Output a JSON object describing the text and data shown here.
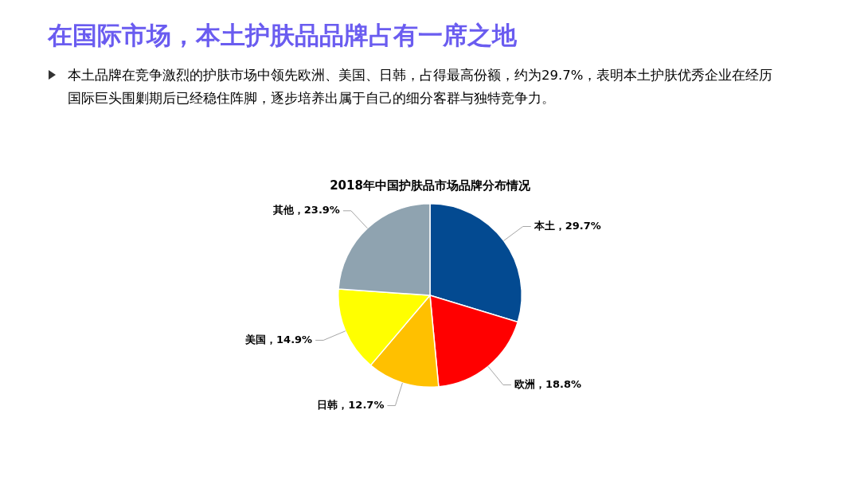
{
  "chart_data": {
    "type": "pie",
    "title": "2018年中国护肤品市场品牌分布情况",
    "annotations": [
      "在国际市场，本土护肤品品牌占有一席之地",
      "本土品牌在竞争激烈的护肤市场中领先欧洲、美国、日韩，占得最高份额，约为29.7%，表明本土护肤优秀企业在经历国际巨头围剿期后已经稳住阵脚，逐步培养出属于自己的细分客群与独特竞争力。"
    ],
    "categories": [
      "本土",
      "欧洲",
      "日韩",
      "美国",
      "其他"
    ],
    "values": [
      29.7,
      18.8,
      12.7,
      14.9,
      23.9
    ],
    "colors": [
      "#034a91",
      "#ff0000",
      "#ffc000",
      "#ffff00",
      "#8fa3b0"
    ],
    "value_labels": [
      "29.7%",
      "18.8%",
      "12.7%",
      "14.9%",
      "23.9%"
    ],
    "legend": false
  }
}
